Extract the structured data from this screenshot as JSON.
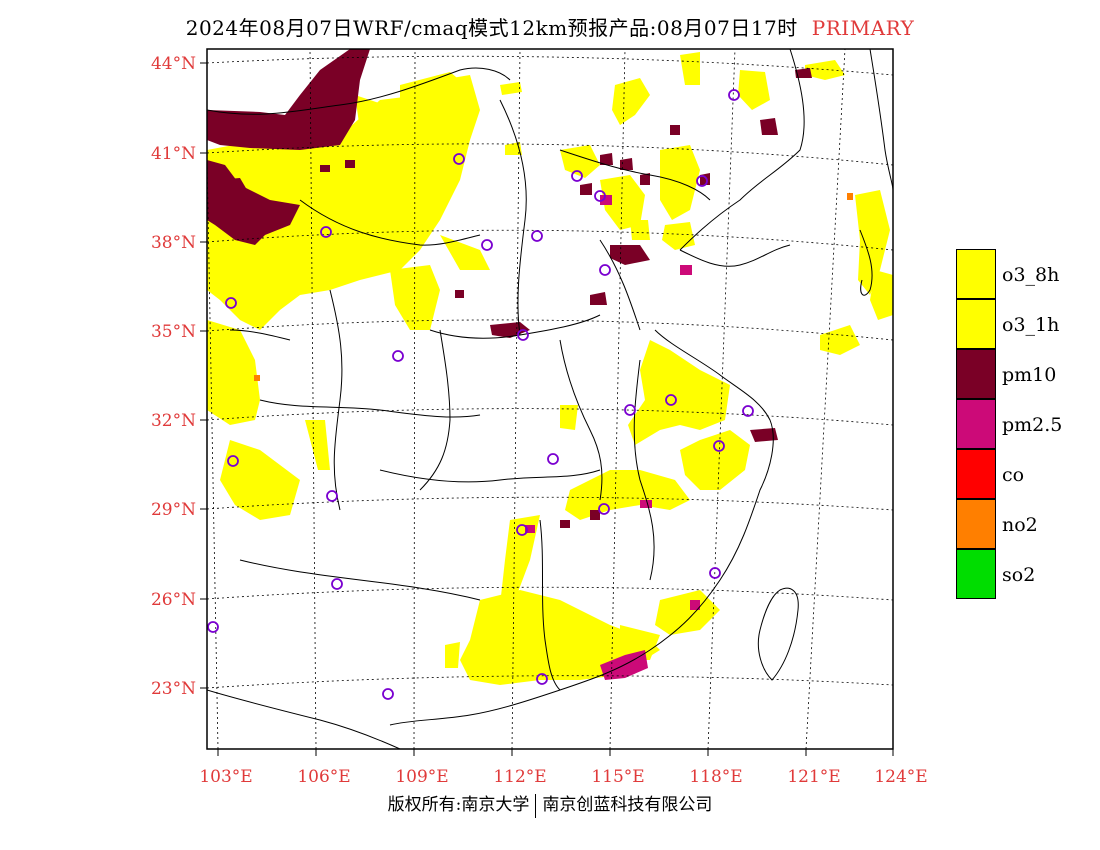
{
  "title": {
    "text": "2024年08月07日WRF/cmaq模式12km预报产品:08月07日17时",
    "tag": "PRIMARY"
  },
  "lat_labels": [
    "44°N",
    "41°N",
    "38°N",
    "35°N",
    "32°N",
    "29°N",
    "26°N",
    "23°N"
  ],
  "lon_labels": [
    "103°E",
    "106°E",
    "109°E",
    "112°E",
    "115°E",
    "118°E",
    "121°E",
    "124°E"
  ],
  "legend": [
    {
      "label": "o3_8h",
      "color": "#ffff00"
    },
    {
      "label": "o3_1h",
      "color": "#ffff00"
    },
    {
      "label": "pm10",
      "color": "#7a0026"
    },
    {
      "label": "pm2.5",
      "color": "#cc0a78"
    },
    {
      "label": "co",
      "color": "#ff0000"
    },
    {
      "label": "no2",
      "color": "#ff7f00"
    },
    {
      "label": "so2",
      "color": "#00dd00"
    }
  ],
  "footer": {
    "left": "版权所有:南京大学",
    "right": "南京创蓝科技有限公司"
  },
  "colors": {
    "label": "#e03a3a",
    "station": "#7a00d0",
    "o3": "#ffff00",
    "pm10": "#7a0026",
    "pm25": "#cc0a78",
    "no2": "#ff7f00"
  }
}
